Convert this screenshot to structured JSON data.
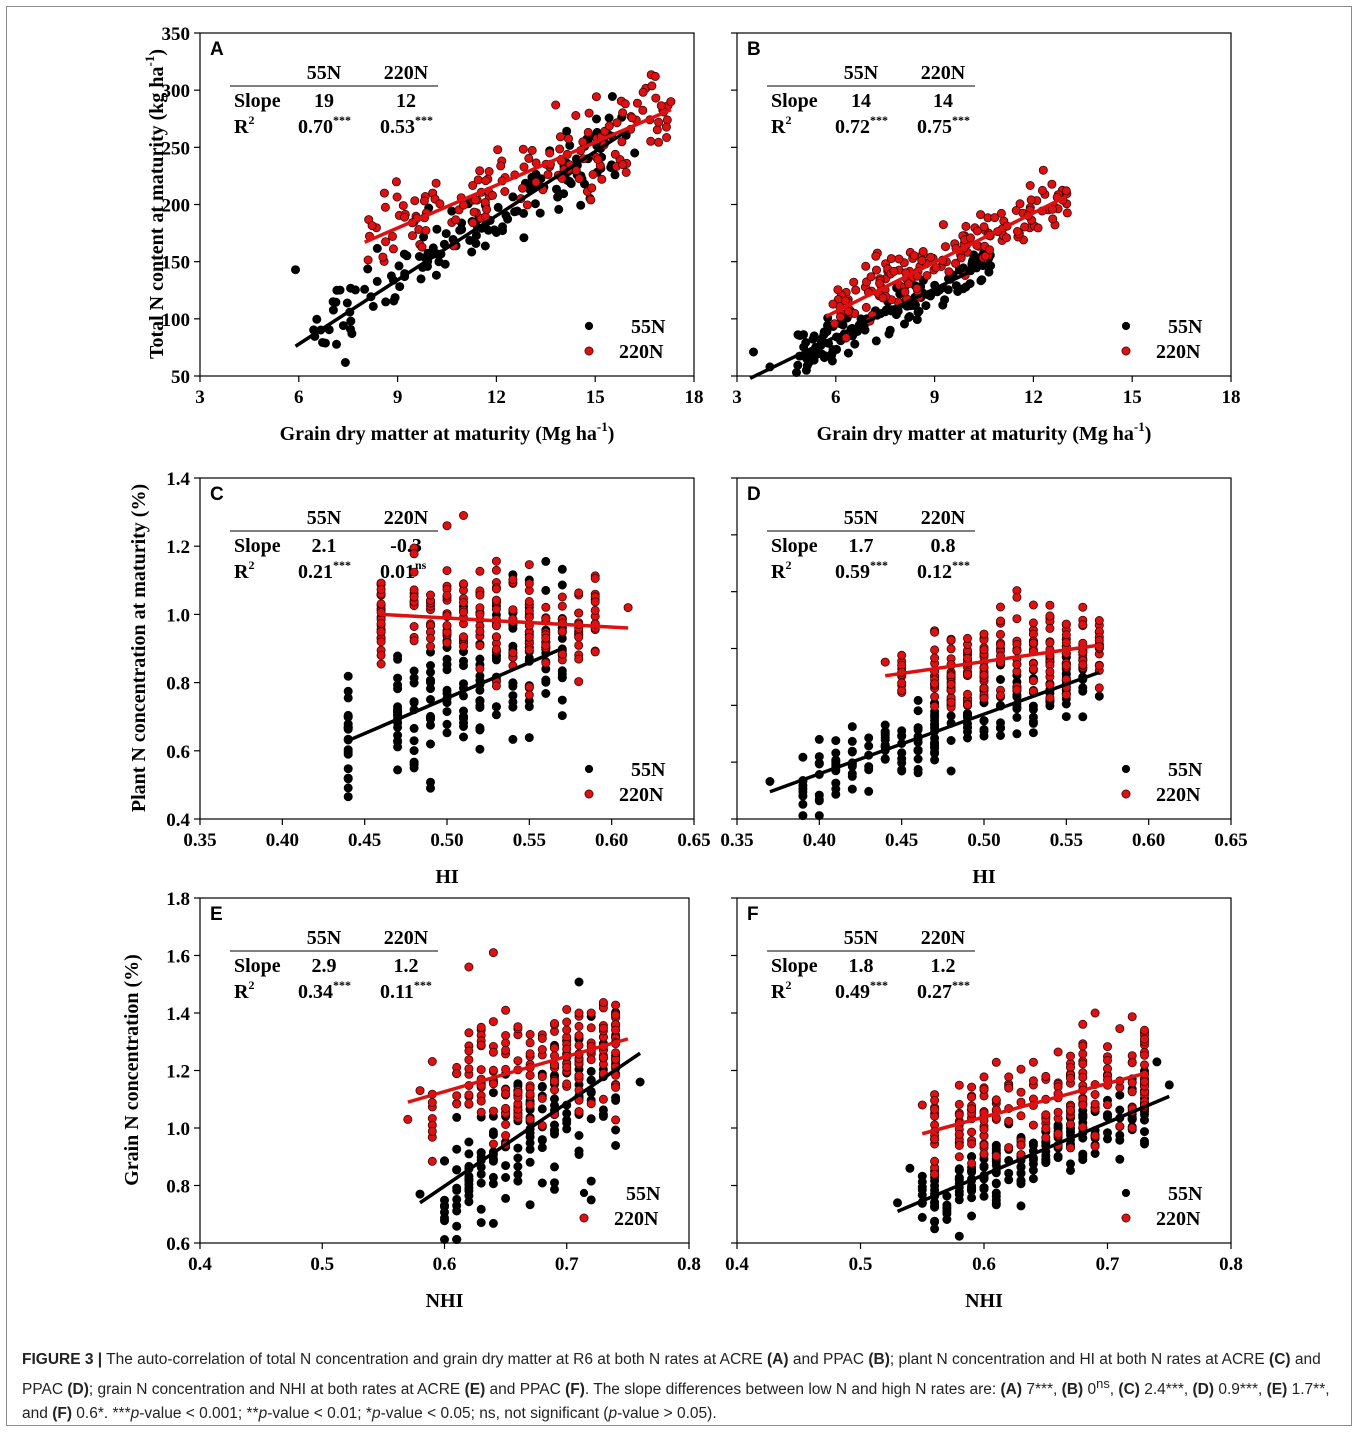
{
  "colors": {
    "n55": "#000000",
    "n220": "#dd1111",
    "n220_edge": "#3a0000"
  },
  "stats_headers": {
    "col1": "55N",
    "col2": "220N",
    "slope": "Slope",
    "r2": "R",
    "r2_sup": "2"
  },
  "legend": {
    "n55": "55N",
    "n220": "220N"
  },
  "caption": {
    "label": "FIGURE 3 |",
    "t1": "The auto-correlation of total N concentration and grain dry matter at R6 at both N rates at ACRE",
    "pA": "(A)",
    "t2": "and PPAC",
    "pB": "(B)",
    "t3": "; plant N concentration and HI at both N rates at ACRE",
    "pC": "(C)",
    "t4": "and PPAC",
    "pD": "(D)",
    "t5": "; grain N concentration and NHI at both rates at ACRE",
    "pE": "(E)",
    "t6": "and PPAC",
    "pF": "(F)",
    "t7": ". The slope differences between low N and high N rates are:",
    "dA_label": "(A)",
    "dA": "7***,",
    "dB_label": "(B)",
    "dB": "0",
    "dB_sup": "ns",
    "dB_end": ",",
    "dC_label": "(C)",
    "dC": "2.4***,",
    "dD_label": "(D)",
    "dD": "0.9***,",
    "dE_label": "(E)",
    "dE": "1.7**, and",
    "dF_label": "(F)",
    "dF": "0.6*.",
    "p1": "***",
    "p1i": "p",
    "p1t": "-value < 0.001;",
    "p2": "**",
    "p2i": "p",
    "p2t": "-value < 0.01;",
    "p3": "*",
    "p3i": "p",
    "p3t": "-value < 0.05; ns, not significant (",
    "p4i": "p",
    "p4t": "-value > 0.05)."
  },
  "chart_data": [
    {
      "panel": "A",
      "type": "scatter",
      "ylabel": "Total N content at maturity (kg ha",
      "ylabel_sup": "-1",
      "ylabel_end": ")",
      "xlabel": "Grain dry matter at maturity (Mg ha",
      "xlabel_sup": "-1",
      "xlabel_end": ")",
      "xlim": [
        3,
        18
      ],
      "ylim": [
        50,
        350
      ],
      "xticks": [
        "3",
        "6",
        "9",
        "12",
        "15",
        "18"
      ],
      "yticks": [
        "50",
        "100",
        "150",
        "200",
        "250",
        "300",
        "350"
      ],
      "stats": {
        "slope_55": "19",
        "slope_220": "12",
        "r2_55": "0.70",
        "r2_55_sig": "***",
        "r2_220": "0.53",
        "r2_220_sig": "***"
      },
      "fits": [
        {
          "name": "55N",
          "x": [
            5.9,
            16.0
          ],
          "y": [
            76,
            265
          ]
        },
        {
          "name": "220N",
          "x": [
            8.0,
            17.3
          ],
          "y": [
            167,
            283
          ]
        }
      ],
      "gen": {
        "n55": {
          "n": 150,
          "xmin": 6.3,
          "xmax": 16.0,
          "x0": 5.9,
          "x1": 16.0,
          "y0": 76,
          "y1": 265,
          "sd": 15,
          "extra": [
            [
              5.9,
              143
            ],
            [
              16.2,
              245
            ],
            [
              15.6,
              226
            ]
          ]
        },
        "n220": {
          "n": 150,
          "xmin": 8.1,
          "xmax": 17.3,
          "x0": 8.0,
          "x1": 17.3,
          "y0": 167,
          "y1": 283,
          "sd": 20,
          "extra": [
            [
              13.8,
              287
            ],
            [
              17.3,
              290
            ],
            [
              8.6,
              210
            ],
            [
              15.2,
              222
            ]
          ]
        }
      }
    },
    {
      "panel": "B",
      "type": "scatter",
      "ylabel": "",
      "xlabel": "Grain dry matter at maturity (Mg ha",
      "xlabel_sup": "-1",
      "xlabel_end": ")",
      "xlim": [
        3,
        18
      ],
      "ylim": [
        50,
        350
      ],
      "xticks": [
        "3",
        "6",
        "9",
        "12",
        "15",
        "18"
      ],
      "yticks": [],
      "stats": {
        "slope_55": "14",
        "slope_220": "14",
        "r2_55": "0.72",
        "r2_55_sig": "***",
        "r2_220": "0.75",
        "r2_220_sig": "***"
      },
      "fits": [
        {
          "name": "55N",
          "x": [
            3.4,
            10.7
          ],
          "y": [
            48,
            150
          ]
        },
        {
          "name": "220N",
          "x": [
            5.7,
            13.0
          ],
          "y": [
            102,
            207
          ]
        }
      ],
      "gen": {
        "n55": {
          "n": 160,
          "xmin": 4.8,
          "xmax": 10.7,
          "x0": 3.4,
          "x1": 10.7,
          "y0": 48,
          "y1": 150,
          "sd": 9,
          "extra": [
            [
              3.5,
              71
            ],
            [
              4.0,
              58
            ]
          ]
        },
        "n220": {
          "n": 170,
          "xmin": 5.8,
          "xmax": 13.1,
          "x0": 5.7,
          "x1": 13.0,
          "y0": 102,
          "y1": 207,
          "sd": 12,
          "extra": [
            [
              12.3,
              230
            ],
            [
              13.0,
              212
            ]
          ]
        }
      }
    },
    {
      "panel": "C",
      "type": "scatter",
      "ylabel": "Plant N concentration at maturity (%)",
      "xlabel": "HI",
      "xlim": [
        0.35,
        0.65
      ],
      "ylim": [
        0.4,
        1.4
      ],
      "xticks": [
        "0.35",
        "0.40",
        "0.45",
        "0.50",
        "0.55",
        "0.60",
        "0.65"
      ],
      "yticks": [
        "0.4",
        "0.6",
        "0.8",
        "1.0",
        "1.2",
        "1.4"
      ],
      "stats": {
        "slope_55": "2.1",
        "slope_220": "-0.3",
        "r2_55": "0.21",
        "r2_55_sig": "***",
        "r2_220": "0.01",
        "r2_220_sig": "ns"
      },
      "fits": [
        {
          "name": "55N",
          "x": [
            0.44,
            0.57
          ],
          "y": [
            0.63,
            0.9
          ]
        },
        {
          "name": "220N",
          "x": [
            0.46,
            0.61
          ],
          "y": [
            1.0,
            0.96
          ]
        }
      ],
      "gen": {
        "n55": {
          "n": 190,
          "xsteps": [
            0.44,
            0.47,
            0.48,
            0.49,
            0.5,
            0.51,
            0.52,
            0.53,
            0.54,
            0.55,
            0.56,
            0.57
          ],
          "x0": 0.44,
          "x1": 0.57,
          "y0": 0.63,
          "y1": 0.9,
          "sd": 0.1,
          "extra": [
            [
              0.44,
              0.59
            ],
            [
              0.44,
              0.7
            ],
            [
              0.48,
              0.55
            ]
          ]
        },
        "n220": {
          "n": 190,
          "xsteps": [
            0.46,
            0.48,
            0.49,
            0.5,
            0.51,
            0.52,
            0.53,
            0.54,
            0.55,
            0.56,
            0.57,
            0.58,
            0.59
          ],
          "x0": 0.46,
          "x1": 0.61,
          "y0": 1.0,
          "y1": 0.96,
          "sd": 0.07,
          "extra": [
            [
              0.51,
              1.29
            ],
            [
              0.5,
              1.26
            ],
            [
              0.61,
              1.02
            ],
            [
              0.46,
              0.88
            ],
            [
              0.46,
              0.92
            ],
            [
              0.59,
              0.89
            ]
          ]
        }
      }
    },
    {
      "panel": "D",
      "type": "scatter",
      "ylabel": "",
      "xlabel": "HI",
      "xlim": [
        0.35,
        0.65
      ],
      "ylim": [
        0.4,
        1.4
      ],
      "xticks": [
        "0.35",
        "0.40",
        "0.45",
        "0.50",
        "0.55",
        "0.60",
        "0.65"
      ],
      "yticks": [],
      "stats": {
        "slope_55": "1.7",
        "slope_220": "0.8",
        "r2_55": "0.59",
        "r2_55_sig": "***",
        "r2_220": "0.12",
        "r2_220_sig": "***"
      },
      "fits": [
        {
          "name": "55N",
          "x": [
            0.37,
            0.57
          ],
          "y": [
            0.48,
            0.83
          ]
        },
        {
          "name": "220N",
          "x": [
            0.44,
            0.57
          ],
          "y": [
            0.82,
            0.91
          ]
        }
      ],
      "gen": {
        "n55": {
          "n": 210,
          "xsteps": [
            0.39,
            0.4,
            0.41,
            0.42,
            0.43,
            0.44,
            0.45,
            0.46,
            0.47,
            0.48,
            0.49,
            0.5,
            0.51,
            0.52,
            0.53,
            0.54,
            0.55,
            0.56
          ],
          "x0": 0.37,
          "x1": 0.57,
          "y0": 0.48,
          "y1": 0.83,
          "sd": 0.05,
          "extra": [
            [
              0.37,
              0.51
            ],
            [
              0.57,
              0.76
            ]
          ]
        },
        "n220": {
          "n": 200,
          "xsteps": [
            0.45,
            0.47,
            0.48,
            0.49,
            0.5,
            0.51,
            0.52,
            0.53,
            0.54,
            0.55,
            0.56,
            0.57
          ],
          "x0": 0.44,
          "x1": 0.57,
          "y0": 0.82,
          "y1": 0.91,
          "sd": 0.06,
          "extra": [
            [
              0.44,
              0.86
            ],
            [
              0.52,
              1.05
            ]
          ]
        }
      }
    },
    {
      "panel": "E",
      "type": "scatter",
      "ylabel": "Grain N concentration (%)",
      "xlabel": "NHI",
      "xlim": [
        0.4,
        0.8
      ],
      "ylim": [
        0.6,
        1.8
      ],
      "xticks": [
        "0.4",
        "0.5",
        "0.6",
        "0.7",
        "0.8"
      ],
      "yticks": [
        "0.6",
        "0.8",
        "1.0",
        "1.2",
        "1.4",
        "1.6",
        "1.8"
      ],
      "stats": {
        "slope_55": "2.9",
        "slope_220": "1.2",
        "r2_55": "0.34",
        "r2_55_sig": "***",
        "r2_220": "0.11",
        "r2_220_sig": "***"
      },
      "fits": [
        {
          "name": "55N",
          "x": [
            0.58,
            0.76
          ],
          "y": [
            0.74,
            1.26
          ]
        },
        {
          "name": "220N",
          "x": [
            0.57,
            0.75
          ],
          "y": [
            1.09,
            1.31
          ]
        }
      ],
      "gen": {
        "n55": {
          "n": 190,
          "xsteps": [
            0.6,
            0.61,
            0.62,
            0.63,
            0.64,
            0.65,
            0.66,
            0.67,
            0.68,
            0.69,
            0.7,
            0.71,
            0.72,
            0.73,
            0.74
          ],
          "x0": 0.58,
          "x1": 0.76,
          "y0": 0.74,
          "y1": 1.26,
          "sd": 0.13,
          "extra": [
            [
              0.58,
              0.77
            ],
            [
              0.76,
              1.16
            ],
            [
              0.72,
              0.75
            ]
          ]
        },
        "n220": {
          "n": 190,
          "xsteps": [
            0.59,
            0.61,
            0.62,
            0.63,
            0.64,
            0.65,
            0.66,
            0.67,
            0.68,
            0.69,
            0.7,
            0.71,
            0.72,
            0.73,
            0.74
          ],
          "x0": 0.57,
          "x1": 0.75,
          "y0": 1.09,
          "y1": 1.31,
          "sd": 0.11,
          "extra": [
            [
              0.64,
              1.61
            ],
            [
              0.62,
              1.56
            ],
            [
              0.57,
              1.03
            ],
            [
              0.58,
              1.13
            ]
          ]
        }
      }
    },
    {
      "panel": "F",
      "type": "scatter",
      "ylabel": "",
      "xlabel": "NHI",
      "xlim": [
        0.4,
        0.8
      ],
      "ylim": [
        0.6,
        1.8
      ],
      "xticks": [
        "0.4",
        "0.5",
        "0.6",
        "0.7",
        "0.8"
      ],
      "yticks": [],
      "stats": {
        "slope_55": "1.8",
        "slope_220": "1.2",
        "r2_55": "0.49",
        "r2_55_sig": "***",
        "r2_220": "0.27",
        "r2_220_sig": "***"
      },
      "fits": [
        {
          "name": "55N",
          "x": [
            0.53,
            0.75
          ],
          "y": [
            0.71,
            1.11
          ]
        },
        {
          "name": "220N",
          "x": [
            0.55,
            0.73
          ],
          "y": [
            0.98,
            1.19
          ]
        }
      ],
      "gen": {
        "n55": {
          "n": 220,
          "xsteps": [
            0.55,
            0.56,
            0.57,
            0.58,
            0.59,
            0.6,
            0.61,
            0.62,
            0.63,
            0.64,
            0.65,
            0.66,
            0.67,
            0.68,
            0.69,
            0.7,
            0.71,
            0.72,
            0.73
          ],
          "x0": 0.53,
          "x1": 0.75,
          "y0": 0.71,
          "y1": 1.11,
          "sd": 0.06,
          "extra": [
            [
              0.53,
              0.74
            ],
            [
              0.54,
              0.86
            ],
            [
              0.75,
              1.15
            ],
            [
              0.74,
              1.23
            ]
          ]
        },
        "n220": {
          "n": 190,
          "xsteps": [
            0.56,
            0.58,
            0.59,
            0.6,
            0.61,
            0.62,
            0.63,
            0.64,
            0.65,
            0.66,
            0.67,
            0.68,
            0.69,
            0.7,
            0.71,
            0.72,
            0.73
          ],
          "x0": 0.55,
          "x1": 0.73,
          "y0": 0.98,
          "y1": 1.19,
          "sd": 0.08,
          "extra": [
            [
              0.69,
              1.4
            ],
            [
              0.73,
              1.34
            ],
            [
              0.55,
              1.08
            ]
          ]
        }
      }
    }
  ]
}
